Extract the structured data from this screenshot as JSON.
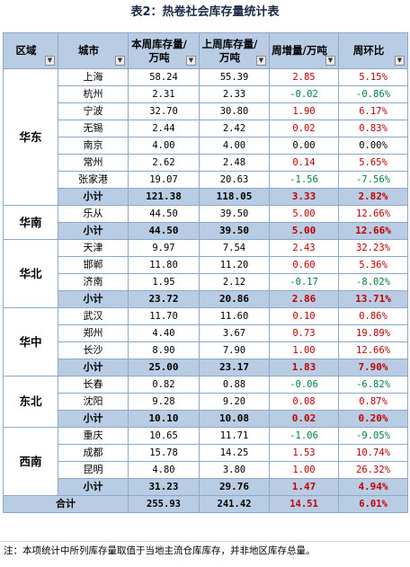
{
  "title": "表2：热卷社会库存量统计表",
  "headers": [
    "区域",
    "城市",
    "本周库存量/万吨",
    "上周库存量/万吨",
    "周增量/万吨",
    "周环比"
  ],
  "dropdown_icon": "▼",
  "subtotal_label": "小计",
  "total": {
    "label": "合计",
    "this_week": "255.93",
    "last_week": "241.42",
    "change": "14.51",
    "pct": "6.01%"
  },
  "regions": [
    {
      "name": "华东",
      "rows": [
        {
          "city": "上海",
          "this_week": "58.24",
          "last_week": "55.39",
          "change": "2.85",
          "pct": "5.15%"
        },
        {
          "city": "杭州",
          "this_week": "2.31",
          "last_week": "2.33",
          "change": "-0.02",
          "pct": "-0.86%"
        },
        {
          "city": "宁波",
          "this_week": "32.70",
          "last_week": "30.80",
          "change": "1.90",
          "pct": "6.17%"
        },
        {
          "city": "无锡",
          "this_week": "2.44",
          "last_week": "2.42",
          "change": "0.02",
          "pct": "0.83%"
        },
        {
          "city": "南京",
          "this_week": "4.00",
          "last_week": "4.00",
          "change": "0.00",
          "pct": "0.00%"
        },
        {
          "city": "常州",
          "this_week": "2.62",
          "last_week": "2.48",
          "change": "0.14",
          "pct": "5.65%"
        },
        {
          "city": "张家港",
          "this_week": "19.07",
          "last_week": "20.63",
          "change": "-1.56",
          "pct": "-7.56%"
        }
      ],
      "subtotal": {
        "this_week": "121.38",
        "last_week": "118.05",
        "change": "3.33",
        "pct": "2.82%"
      }
    },
    {
      "name": "华南",
      "rows": [
        {
          "city": "乐从",
          "this_week": "44.50",
          "last_week": "39.50",
          "change": "5.00",
          "pct": "12.66%"
        }
      ],
      "subtotal": {
        "this_week": "44.50",
        "last_week": "39.50",
        "change": "5.00",
        "pct": "12.66%"
      }
    },
    {
      "name": "华北",
      "rows": [
        {
          "city": "天津",
          "this_week": "9.97",
          "last_week": "7.54",
          "change": "2.43",
          "pct": "32.23%"
        },
        {
          "city": "邯郸",
          "this_week": "11.80",
          "last_week": "11.20",
          "change": "0.60",
          "pct": "5.36%"
        },
        {
          "city": "济南",
          "this_week": "1.95",
          "last_week": "2.12",
          "change": "-0.17",
          "pct": "-8.02%"
        }
      ],
      "subtotal": {
        "this_week": "23.72",
        "last_week": "20.86",
        "change": "2.86",
        "pct": "13.71%"
      }
    },
    {
      "name": "华中",
      "rows": [
        {
          "city": "武汉",
          "this_week": "11.70",
          "last_week": "11.60",
          "change": "0.10",
          "pct": "0.86%"
        },
        {
          "city": "郑州",
          "this_week": "4.40",
          "last_week": "3.67",
          "change": "0.73",
          "pct": "19.89%"
        },
        {
          "city": "长沙",
          "this_week": "8.90",
          "last_week": "7.90",
          "change": "1.00",
          "pct": "12.66%"
        }
      ],
      "subtotal": {
        "this_week": "25.00",
        "last_week": "23.17",
        "change": "1.83",
        "pct": "7.90%"
      }
    },
    {
      "name": "东北",
      "rows": [
        {
          "city": "长春",
          "this_week": "0.82",
          "last_week": "0.88",
          "change": "-0.06",
          "pct": "-6.82%"
        },
        {
          "city": "沈阳",
          "this_week": "9.28",
          "last_week": "9.20",
          "change": "0.08",
          "pct": "0.87%"
        }
      ],
      "subtotal": {
        "this_week": "10.10",
        "last_week": "10.08",
        "change": "0.02",
        "pct": "0.20%"
      }
    },
    {
      "name": "西南",
      "rows": [
        {
          "city": "重庆",
          "this_week": "10.65",
          "last_week": "11.71",
          "change": "-1.06",
          "pct": "-9.05%"
        },
        {
          "city": "成都",
          "this_week": "15.78",
          "last_week": "14.25",
          "change": "1.53",
          "pct": "10.74%"
        },
        {
          "city": "昆明",
          "this_week": "4.80",
          "last_week": "3.80",
          "change": "1.00",
          "pct": "26.32%"
        }
      ],
      "subtotal": {
        "this_week": "31.23",
        "last_week": "29.76",
        "change": "1.47",
        "pct": "4.94%"
      }
    }
  ],
  "note": "注：本项统计中所列库存量取值于当地主流仓库库存，并非地区库存总量。"
}
